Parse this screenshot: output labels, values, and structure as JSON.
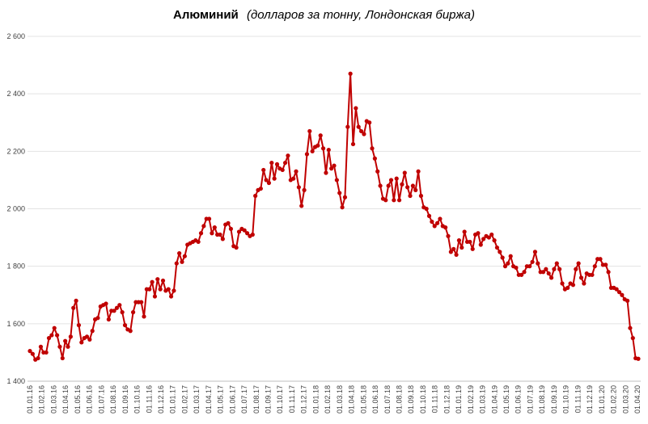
{
  "chart_data": {
    "type": "line",
    "title": "Алюминий",
    "subtitle": "(долларов за тонну, Лондонская биржа)",
    "ylim": [
      1400,
      2600
    ],
    "y_ticks": [
      "1 400",
      "1 600",
      "1 800",
      "2 000",
      "2 200",
      "2 400",
      "2 600"
    ],
    "y_tick_values": [
      1400,
      1600,
      1800,
      2000,
      2200,
      2400,
      2600
    ],
    "x_tick_labels": [
      "01.01.16",
      "01.02.16",
      "01.03.16",
      "01.04.16",
      "01.05.16",
      "01.06.16",
      "01.07.16",
      "01.08.16",
      "01.09.16",
      "01.10.16",
      "01.11.16",
      "01.12.16",
      "01.01.17",
      "01.02.17",
      "01.03.17",
      "01.04.17",
      "01.05.17",
      "01.06.17",
      "01.07.17",
      "01.08.17",
      "01.09.17",
      "01.10.17",
      "01.11.17",
      "01.12.17",
      "01.01.18",
      "01.02.18",
      "01.03.18",
      "01.04.18",
      "01.05.18",
      "01.06.18",
      "01.07.18",
      "01.08.18",
      "01.09.18",
      "01.10.18",
      "01.11.18",
      "01.12.18",
      "01.01.19",
      "01.02.19",
      "01.03.19",
      "01.04.19",
      "01.05.19",
      "01.06.19",
      "01.07.19",
      "01.08.19",
      "01.09.19",
      "01.10.19",
      "01.11.19",
      "01.12.19",
      "01.01.20",
      "01.02.20",
      "01.03.20",
      "01.04.20"
    ],
    "grid": true,
    "legend": "none",
    "series": [
      {
        "color": "#c00000",
        "values": [
          1505,
          1495,
          1475,
          1480,
          1520,
          1500,
          1500,
          1550,
          1560,
          1585,
          1560,
          1520,
          1480,
          1540,
          1520,
          1555,
          1655,
          1680,
          1595,
          1535,
          1550,
          1555,
          1545,
          1575,
          1615,
          1620,
          1660,
          1665,
          1670,
          1615,
          1645,
          1645,
          1655,
          1665,
          1640,
          1595,
          1580,
          1575,
          1640,
          1675,
          1675,
          1675,
          1625,
          1720,
          1720,
          1745,
          1695,
          1755,
          1720,
          1750,
          1715,
          1720,
          1695,
          1715,
          1810,
          1845,
          1815,
          1835,
          1875,
          1880,
          1885,
          1890,
          1885,
          1915,
          1940,
          1965,
          1965,
          1915,
          1935,
          1910,
          1910,
          1895,
          1945,
          1950,
          1930,
          1870,
          1865,
          1920,
          1930,
          1925,
          1915,
          1905,
          1910,
          2045,
          2065,
          2070,
          2135,
          2100,
          2090,
          2160,
          2105,
          2155,
          2140,
          2135,
          2160,
          2185,
          2100,
          2105,
          2130,
          2075,
          2010,
          2065,
          2190,
          2270,
          2200,
          2215,
          2220,
          2255,
          2210,
          2125,
          2205,
          2140,
          2150,
          2100,
          2055,
          2005,
          2040,
          2285,
          2470,
          2225,
          2350,
          2285,
          2270,
          2260,
          2305,
          2300,
          2210,
          2175,
          2130,
          2080,
          2035,
          2030,
          2080,
          2100,
          2030,
          2105,
          2030,
          2085,
          2125,
          2075,
          2045,
          2080,
          2065,
          2130,
          2045,
          2005,
          2000,
          1975,
          1955,
          1940,
          1950,
          1965,
          1940,
          1935,
          1905,
          1850,
          1860,
          1840,
          1890,
          1865,
          1920,
          1885,
          1885,
          1860,
          1910,
          1915,
          1875,
          1895,
          1905,
          1900,
          1910,
          1890,
          1865,
          1850,
          1830,
          1800,
          1810,
          1835,
          1800,
          1795,
          1770,
          1770,
          1780,
          1800,
          1800,
          1815,
          1850,
          1810,
          1780,
          1780,
          1790,
          1775,
          1760,
          1790,
          1810,
          1790,
          1740,
          1720,
          1725,
          1740,
          1735,
          1790,
          1810,
          1760,
          1740,
          1775,
          1770,
          1770,
          1800,
          1825,
          1825,
          1805,
          1805,
          1780,
          1725,
          1725,
          1720,
          1710,
          1700,
          1685,
          1680,
          1585,
          1550,
          1480,
          1478
        ]
      }
    ]
  }
}
